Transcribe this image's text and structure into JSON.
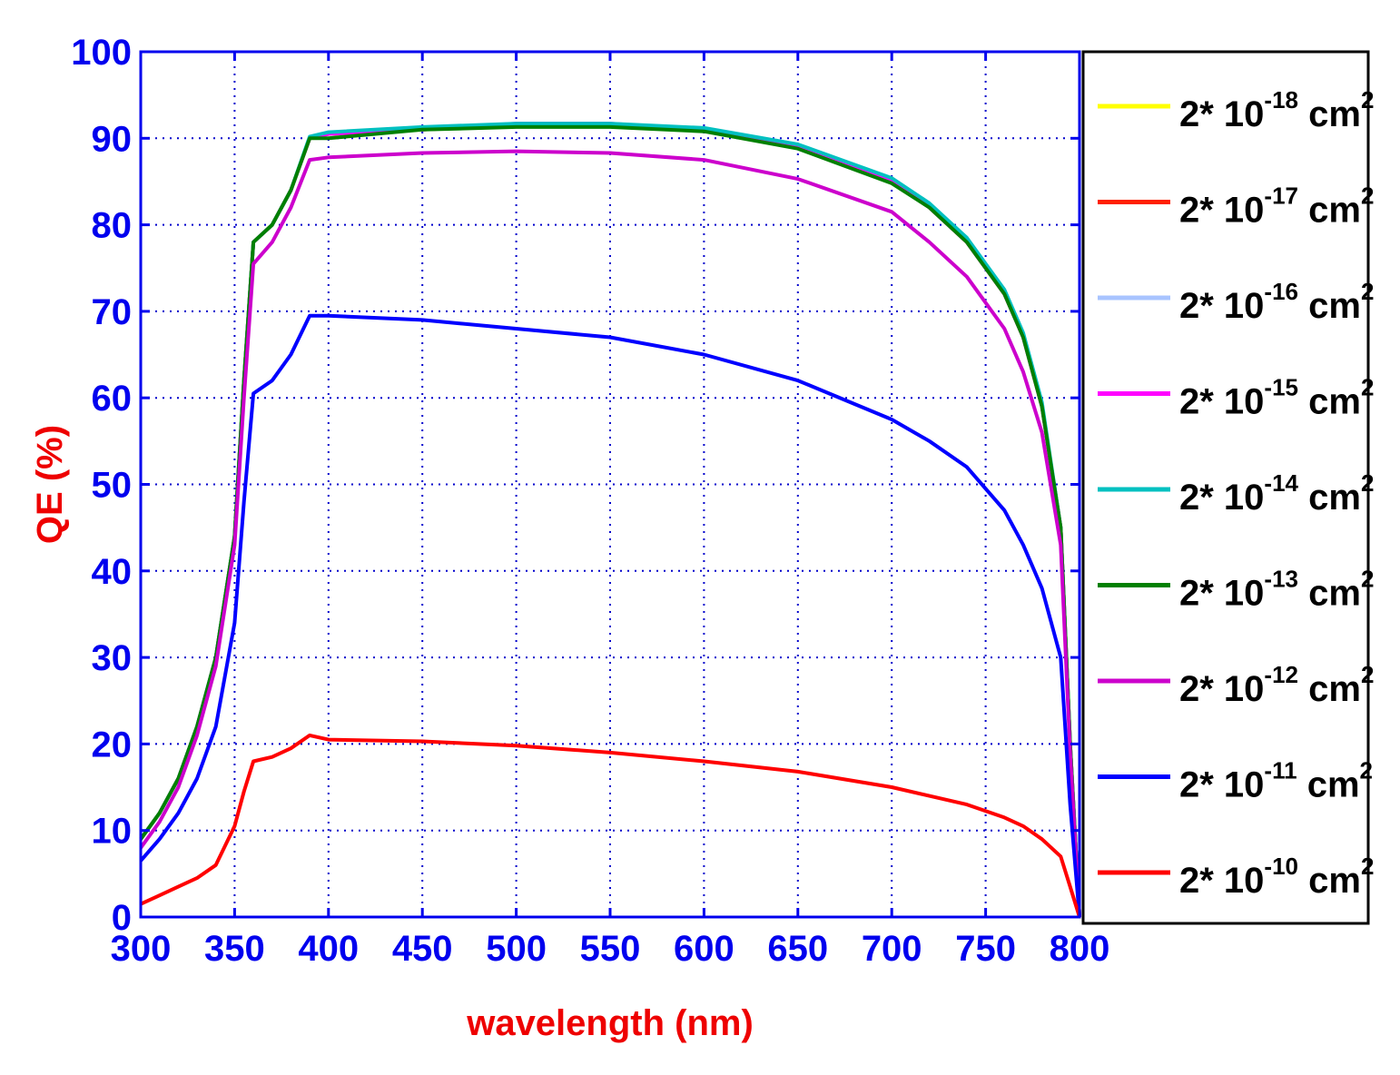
{
  "chart_data": {
    "type": "line",
    "title": "",
    "xlabel": "wavelength (nm)",
    "ylabel": "QE (%)",
    "xlim": [
      300,
      800
    ],
    "ylim": [
      0,
      100
    ],
    "xticks": [
      300,
      350,
      400,
      450,
      500,
      550,
      600,
      650,
      700,
      750,
      800
    ],
    "yticks": [
      0,
      10,
      20,
      30,
      40,
      50,
      60,
      70,
      80,
      90,
      100
    ],
    "grid": true,
    "legend_position": "outside-right",
    "x": [
      300,
      310,
      320,
      330,
      340,
      350,
      355,
      360,
      370,
      380,
      390,
      400,
      450,
      500,
      550,
      600,
      650,
      700,
      720,
      740,
      760,
      770,
      780,
      790,
      795,
      800
    ],
    "series": [
      {
        "name_base": "2* 10",
        "name_exp": "-18",
        "name_unit": "cm",
        "name_unit_exp": "2",
        "color": "#ffff00",
        "values": [
          9,
          12,
          16,
          22,
          30,
          44,
          62,
          78,
          80,
          84,
          90,
          90.5,
          91,
          91.5,
          91.5,
          91,
          89,
          85,
          82,
          78,
          72,
          67,
          59,
          45,
          20,
          0
        ]
      },
      {
        "name_base": "2* 10",
        "name_exp": "-17",
        "name_unit": "cm",
        "name_unit_exp": "2",
        "color": "#ff2000",
        "values": [
          9,
          12,
          16,
          22,
          30,
          44,
          62,
          78,
          80,
          84,
          90,
          90.5,
          91,
          91.5,
          91.5,
          91,
          89,
          85,
          82,
          78,
          72,
          67,
          59,
          45,
          20,
          0
        ]
      },
      {
        "name_base": "2* 10",
        "name_exp": "-16",
        "name_unit": "cm",
        "name_unit_exp": "2",
        "color": "#a8c4ff",
        "values": [
          9,
          12,
          16,
          22,
          30,
          44,
          62,
          78,
          80,
          84,
          90,
          90.5,
          91,
          91.5,
          91.5,
          91,
          89,
          85,
          82,
          78,
          72,
          67,
          59,
          45,
          20,
          0
        ]
      },
      {
        "name_base": "2* 10",
        "name_exp": "-15",
        "name_unit": "cm",
        "name_unit_exp": "2",
        "color": "#ff00ff",
        "values": [
          9,
          12,
          16,
          22,
          30,
          44,
          62,
          78,
          80,
          84,
          90,
          90.5,
          91,
          91.7,
          91.7,
          91,
          89,
          85,
          82,
          78,
          72,
          67,
          59,
          45,
          20,
          0
        ]
      },
      {
        "name_base": "2* 10",
        "name_exp": "-14",
        "name_unit": "cm",
        "name_unit_exp": "2",
        "color": "#00c0c0",
        "values": [
          9,
          12,
          16,
          22,
          30,
          44,
          62,
          78,
          80,
          84,
          90.2,
          90.7,
          91.3,
          91.7,
          91.7,
          91.2,
          89.3,
          85.4,
          82.5,
          78.5,
          72.5,
          67.5,
          59.5,
          45,
          20,
          0
        ]
      },
      {
        "name_base": "2* 10",
        "name_exp": "-13",
        "name_unit": "cm",
        "name_unit_exp": "2",
        "color": "#008000",
        "values": [
          9,
          12,
          16,
          22,
          30,
          44,
          62,
          78,
          80,
          84,
          90,
          90,
          91,
          91.3,
          91.3,
          90.8,
          88.8,
          84.8,
          82,
          78,
          72,
          67,
          59,
          45,
          20,
          0
        ]
      },
      {
        "name_base": "2* 10",
        "name_exp": "-12",
        "name_unit": "cm",
        "name_unit_exp": "2",
        "color": "#cc00cc",
        "values": [
          8,
          11,
          15,
          21,
          29,
          43,
          60,
          75.5,
          78,
          82,
          87.5,
          87.8,
          88.3,
          88.5,
          88.3,
          87.5,
          85.3,
          81.5,
          78,
          74,
          68,
          63,
          56,
          43,
          19,
          0
        ]
      },
      {
        "name_base": "2* 10",
        "name_exp": "-11",
        "name_unit": "cm",
        "name_unit_exp": "2",
        "color": "#0000ff",
        "values": [
          6.5,
          9,
          12,
          16,
          22,
          34,
          48,
          60.5,
          62,
          65,
          69.5,
          69.5,
          69,
          68,
          67,
          65,
          62,
          57.5,
          55,
          52,
          47,
          43,
          38,
          30,
          13,
          0
        ]
      },
      {
        "name_base": "2* 10",
        "name_exp": "-10",
        "name_unit": "cm",
        "name_unit_exp": "2",
        "color": "#ff0000",
        "values": [
          1.5,
          2.5,
          3.5,
          4.5,
          6,
          10.5,
          14.5,
          18,
          18.5,
          19.5,
          21,
          20.5,
          20.3,
          19.8,
          19,
          18,
          16.8,
          15,
          14,
          13,
          11.5,
          10.5,
          9,
          7,
          3.5,
          0
        ]
      }
    ]
  }
}
